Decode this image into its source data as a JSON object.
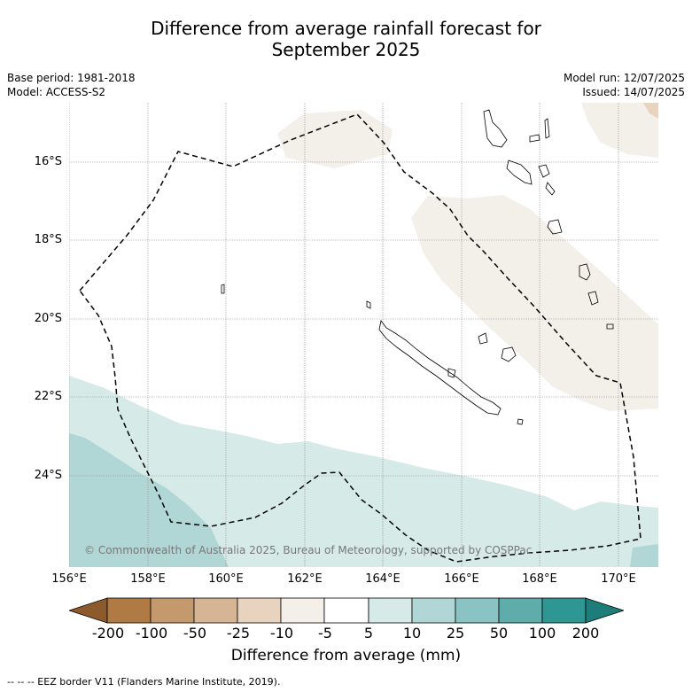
{
  "title_line1": "Difference from average rainfall forecast for",
  "title_line2": "September 2025",
  "base_period": "Base period: 1981-2018",
  "model": "Model: ACCESS-S2",
  "model_run": "Model run: 12/07/2025",
  "issued": "Issued: 14/07/2025",
  "copyright": "© Commonwealth of Australia 2025, Bureau of Meteorology, supported by COSPPac",
  "lat_labels": [
    "16°S",
    "18°S",
    "20°S",
    "22°S",
    "24°S"
  ],
  "lon_labels": [
    "156°E",
    "158°E",
    "160°E",
    "162°E",
    "164°E",
    "166°E",
    "168°E",
    "170°E"
  ],
  "colorbar": {
    "title": "Difference from average (mm)",
    "ticks": [
      "-200",
      "-100",
      "-50",
      "-25",
      "-10",
      "-5",
      "5",
      "10",
      "25",
      "50",
      "100",
      "200"
    ],
    "colors": [
      "#8c5a2b",
      "#b07a45",
      "#c49a6c",
      "#d6b594",
      "#e8d3bf",
      "#f4efe8",
      "#ffffff",
      "#d6eae8",
      "#b0d7d6",
      "#89c3c3",
      "#5eadab",
      "#2f9793",
      "#1f7d79"
    ]
  },
  "footer": "--  --  -- EEZ border V11 (Flanders Marine Institute, 2019)."
}
